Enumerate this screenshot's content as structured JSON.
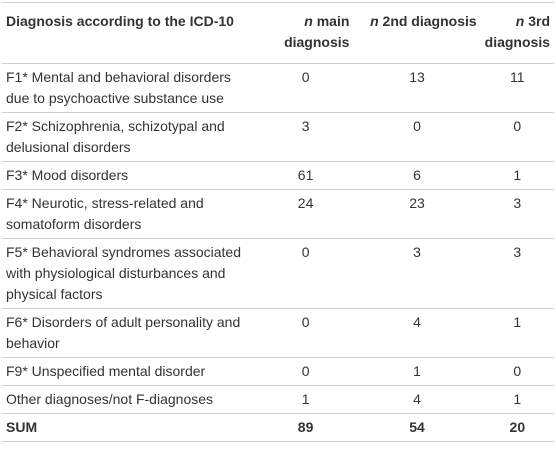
{
  "table": {
    "header": [
      {
        "text": "Diagnosis according to the ICD-10"
      },
      {
        "var": "n",
        "text": "main diagnosis"
      },
      {
        "var": "n",
        "text": "2nd diagnosis"
      },
      {
        "var": "n",
        "text": "3rd diagnosis"
      }
    ],
    "rows": [
      [
        "F1* Mental and behavioral disorders due to psychoactive substance use",
        0,
        13,
        11
      ],
      [
        "F2* Schizophrenia, schizotypal and delusional disorders",
        3,
        0,
        0
      ],
      [
        "F3* Mood disorders",
        61,
        6,
        1
      ],
      [
        "F4* Neurotic, stress-related and somatoform disorders",
        24,
        23,
        3
      ],
      [
        "F5* Behavioral syndromes associated with physiological disturbances and physical factors",
        0,
        3,
        3
      ],
      [
        "F6* Disorders of adult personality and behavior",
        0,
        4,
        1
      ],
      [
        "F9* Unspecified mental disorder",
        0,
        1,
        0
      ],
      [
        "Other diagnoses/not F-diagnoses",
        1,
        4,
        1
      ]
    ],
    "total": [
      "SUM",
      89,
      54,
      20
    ]
  }
}
